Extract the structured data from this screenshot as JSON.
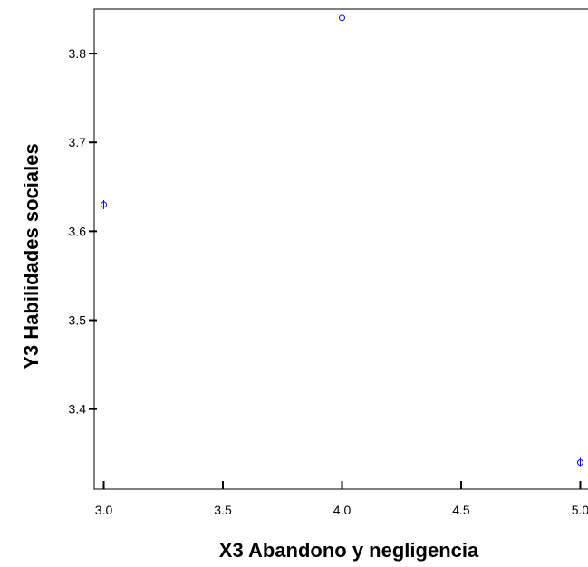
{
  "chart_data": {
    "type": "scatter",
    "title": "",
    "xlabel": "X3 Abandono y negligencia",
    "ylabel": "Y3 Habilidades sociales",
    "xlim": [
      2.96,
      5.04
    ],
    "ylim": [
      3.31,
      3.85
    ],
    "x_ticks": [
      "3.0",
      "3.5",
      "4.0",
      "4.5",
      "5.0"
    ],
    "y_ticks": [
      "3.4",
      "3.5",
      "3.6",
      "3.7",
      "3.8"
    ],
    "grid": false,
    "legend": "none",
    "marker_color": "#0000ff",
    "points": [
      {
        "x": 3.0,
        "y": 3.63
      },
      {
        "x": 4.0,
        "y": 3.84
      },
      {
        "x": 5.0,
        "y": 3.34
      }
    ]
  }
}
